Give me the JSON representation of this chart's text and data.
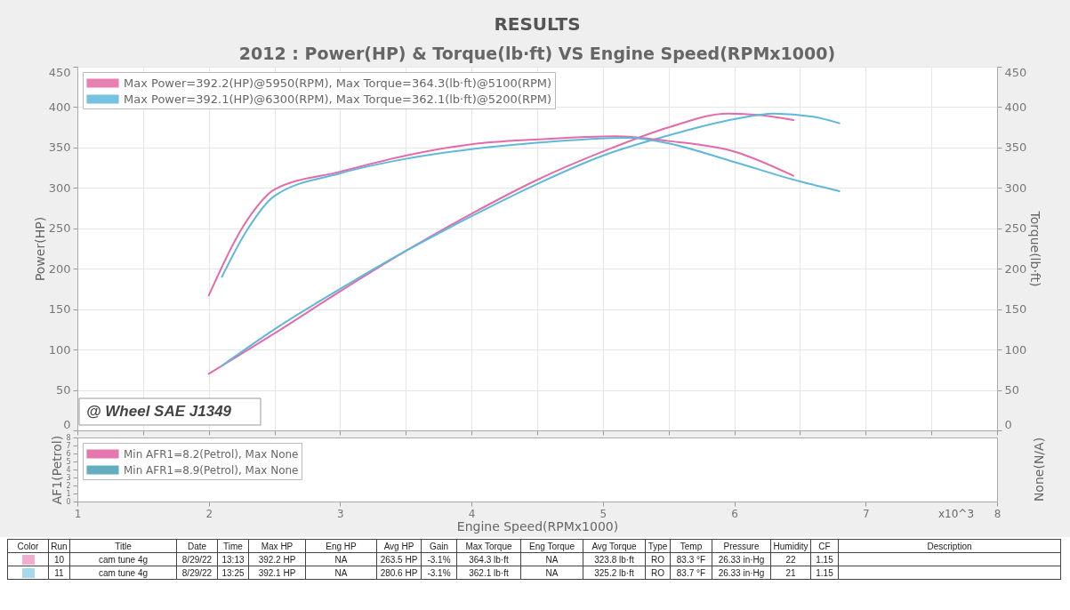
{
  "chart_data": [
    {
      "type": "line",
      "title": "RESULTS",
      "subtitle": "2012 : Power(HP) & Torque(lb·ft) VS Engine Speed(RPMx1000)",
      "ylabel": "Power(HP)",
      "y2label": "Torque(lb·ft)",
      "xlim": [
        1,
        8
      ],
      "xticks": [
        1,
        1.5,
        2,
        2.5,
        3,
        3.5,
        4,
        4.5,
        5,
        5.5,
        6,
        6.5,
        7,
        7.5,
        8
      ],
      "ylim": [
        0,
        450
      ],
      "yticks": [
        0,
        50,
        100,
        150,
        200,
        250,
        300,
        350,
        400,
        450
      ],
      "y2lim": [
        0,
        450
      ],
      "y2ticks": [
        0,
        50,
        100,
        150,
        200,
        250,
        300,
        350,
        400,
        450
      ],
      "tick_labels": "y",
      "grid": true,
      "legend": "top left",
      "annotations": [
        "@ Wheel SAE J1349"
      ],
      "series": [
        {
          "name": "Max Power=392.2(HP)@5950(RPM), Max Torque=364.3(lb·ft)@5100(RPM)",
          "color": "#e46aa8",
          "x": [
            2,
            2.5,
            3,
            3.5,
            4,
            4.5,
            5,
            5.5,
            5.95,
            6.2,
            6.45
          ],
          "values": [
            70,
            120,
            172,
            222,
            268,
            310,
            345,
            375,
            392,
            390,
            384
          ]
        },
        {
          "name": "Max Power=392.1(HP)@6300(RPM), Max Torque=362.1(lb·ft)@5200(RPM)",
          "color": "#5fb8dc",
          "x": [
            2.1,
            2.5,
            3,
            3.5,
            4,
            4.5,
            5,
            5.5,
            6,
            6.3,
            6.6,
            6.8
          ],
          "values": [
            80,
            125,
            175,
            222,
            265,
            305,
            340,
            365,
            385,
            392,
            388,
            380
          ]
        },
        {
          "color": "#e46aa8",
          "axis": "y2",
          "x": [
            2,
            2.3,
            2.5,
            3,
            3.5,
            4,
            4.5,
            5.1,
            5.5,
            6,
            6.45
          ],
          "values": [
            167,
            262,
            298,
            320,
            340,
            354,
            360,
            364,
            358,
            345,
            315
          ]
        },
        {
          "color": "#5fb8dc",
          "axis": "y2",
          "x": [
            2.1,
            2.3,
            2.5,
            3,
            3.5,
            4,
            4.5,
            5.2,
            5.5,
            6,
            6.5,
            6.8
          ],
          "values": [
            190,
            250,
            290,
            318,
            336,
            348,
            356,
            362,
            355,
            332,
            308,
            296
          ]
        }
      ]
    },
    {
      "type": "line",
      "xlabel": "Engine Speed(RPMx1000)",
      "ylabel": "AF1(Petrol)",
      "y2label": "None(N/A)",
      "categories": [
        "1",
        "2",
        "3",
        "4",
        "5",
        "6",
        "7",
        "8"
      ],
      "ylim": [
        0,
        8
      ],
      "yticks": [
        0,
        1,
        2,
        3,
        4,
        5,
        6,
        7,
        8
      ],
      "legend": "top left",
      "annotations": [
        "x10^3"
      ],
      "series": [
        {
          "name": "Min AFR1=8.2(Petrol), Max None",
          "color": "#e0609f",
          "values": [
            null,
            null,
            null,
            null,
            null,
            null,
            null,
            null
          ]
        },
        {
          "name": "Min AFR1=8.9(Petrol), Max None",
          "color": "#4a9fb5",
          "values": [
            null,
            null,
            null,
            null,
            null,
            null,
            null,
            null
          ]
        }
      ]
    },
    {
      "type": "other",
      "categories": [
        "Color",
        "Run",
        "Title",
        "Date",
        "Time",
        "Max HP",
        "Eng HP",
        "Avg HP",
        "Gain",
        "Max Torque",
        "Eng Torque",
        "Avg Torque",
        "Type",
        "Temp",
        "Pressure",
        "Humidity",
        "CF",
        "Description"
      ],
      "annotations": [
        "10",
        "cam tune 4g",
        "8/29/22",
        "13:13",
        "392.2 HP",
        "NA",
        "263.5 HP",
        "-3.1%",
        "364.3 lb·ft",
        "NA",
        "323.8 lb·ft",
        "RO",
        "83.3 °F",
        "26.33 in·Hg",
        "22",
        "1.15",
        "11",
        "cam tune 4g",
        "8/29/22",
        "13:25",
        "392.1 HP",
        "NA",
        "280.6 HP",
        "-3.1%",
        "362.1 lb·ft",
        "NA",
        "325.2 lb·ft",
        "RO",
        "83.7 °F",
        "26.33 in·Hg",
        "21",
        "1.15"
      ]
    }
  ]
}
